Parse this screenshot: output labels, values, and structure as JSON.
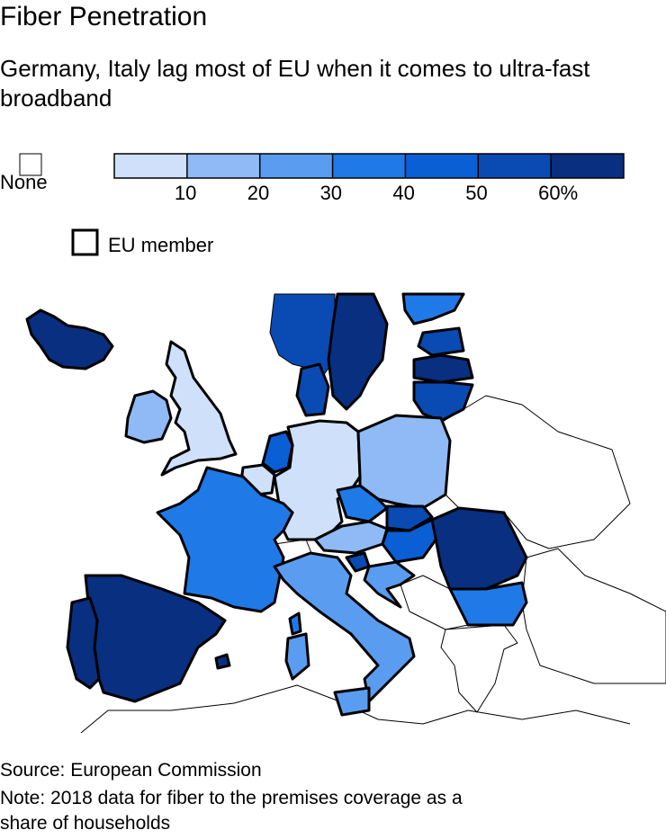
{
  "header": {
    "title": "Fiber Penetration",
    "subtitle": "Germany, Italy lag most of EU when it comes to ultra-fast broadband"
  },
  "legend": {
    "none_label": "None",
    "member_label": "EU member",
    "colors": [
      "#cfe0fb",
      "#8fbaf5",
      "#5a9cf0",
      "#1f7ae8",
      "#0b5fd4",
      "#0a4ab3",
      "#082f80"
    ],
    "lim": [
      0,
      70
    ],
    "ticks": [
      10,
      20,
      30,
      40,
      50,
      {
        "value": 60,
        "label": "60%"
      }
    ]
  },
  "footer": {
    "source": "Source: European Commission",
    "note": "Note: 2018 data for fiber to the premises coverage as a share of households"
  }
}
